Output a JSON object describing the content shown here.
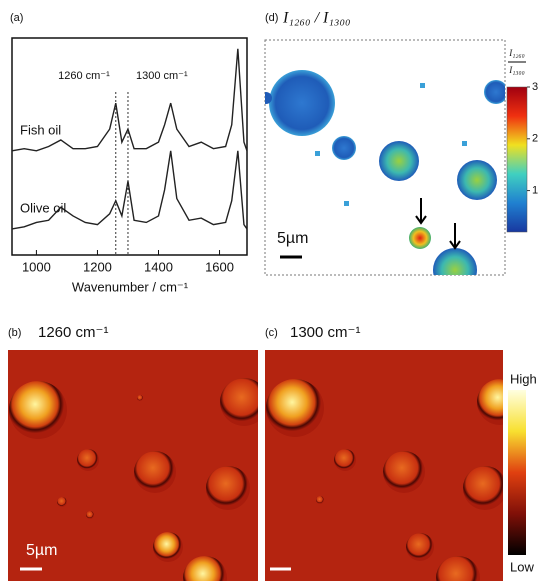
{
  "chart_data": {
    "type": "line",
    "panel_label": "(a)",
    "xlabel": "Wavenumber / cm⁻¹",
    "x": [
      920,
      960,
      1000,
      1040,
      1080,
      1120,
      1160,
      1200,
      1240,
      1260,
      1280,
      1300,
      1320,
      1360,
      1400,
      1420,
      1440,
      1460,
      1500,
      1540,
      1580,
      1620,
      1640,
      1660,
      1680,
      1690
    ],
    "series": [
      {
        "name": "Fish oil",
        "color": "#222",
        "values": [
          4.8,
          4.9,
          4.8,
          5.0,
          5.3,
          4.9,
          4.9,
          5.0,
          5.8,
          7.0,
          5.2,
          5.8,
          4.9,
          4.9,
          5.2,
          6.0,
          7.0,
          5.8,
          5.0,
          5.2,
          4.9,
          5.0,
          6.0,
          9.5,
          5.2,
          4.8
        ]
      },
      {
        "name": "Olive oil",
        "color": "#222",
        "values": [
          1.2,
          1.3,
          1.5,
          1.6,
          2.2,
          1.8,
          1.5,
          1.4,
          1.9,
          2.5,
          1.8,
          3.4,
          1.6,
          1.5,
          1.8,
          3.0,
          4.8,
          2.6,
          1.6,
          1.7,
          1.4,
          1.5,
          2.5,
          4.8,
          1.4,
          1.2
        ]
      }
    ],
    "annotations": [
      {
        "text": "1260 cm⁻¹",
        "x": 1260
      },
      {
        "text": "1300 cm⁻¹",
        "x": 1300
      }
    ],
    "xlim": [
      920,
      1690
    ],
    "xticks": [
      1000,
      1200,
      1400,
      1600
    ],
    "ylim": [
      0,
      10
    ]
  },
  "panel_b": {
    "label": "(b)",
    "title": "1260 cm⁻¹",
    "scale_bar": "5µm"
  },
  "panel_c": {
    "label": "(c)",
    "title": "1300 cm⁻¹",
    "colorbar_high": "High",
    "colorbar_low": "Low"
  },
  "panel_d": {
    "label": "(d)",
    "title": "I₁₂₆₀ / I₁₃₀₀",
    "colorbar_numerator": "I₁₂₆₀",
    "colorbar_denominator": "I₁₃₀₀",
    "colorbar_lim": [
      0.2,
      3
    ],
    "colorbar_ticks": [
      1,
      2,
      3
    ],
    "scale_bar": "5µm"
  }
}
